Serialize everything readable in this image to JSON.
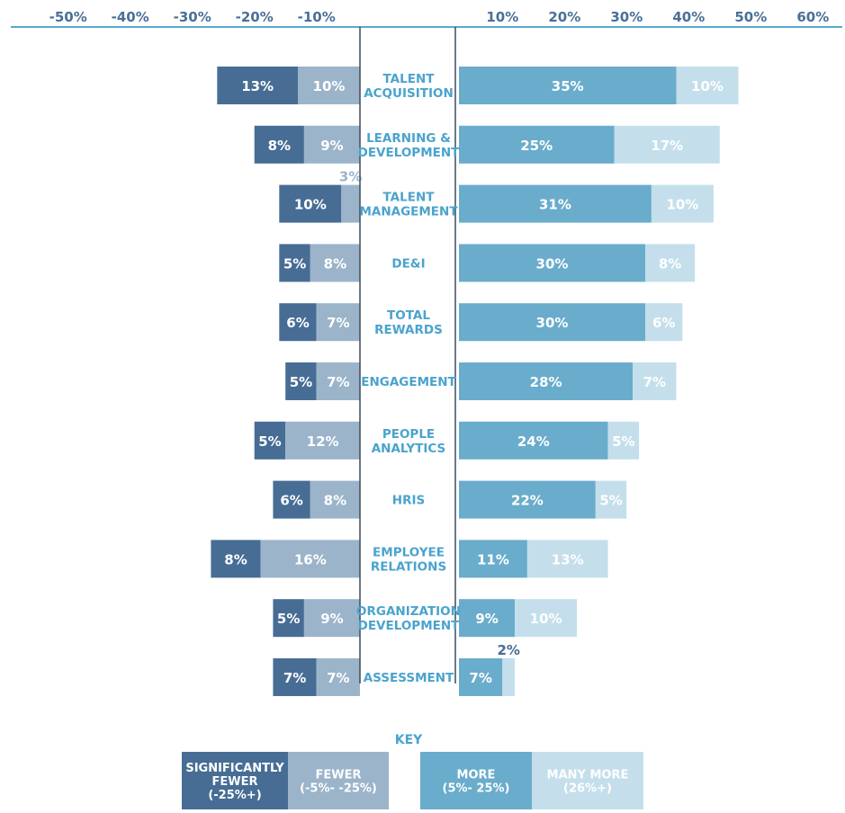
{
  "colors": {
    "significantly_fewer": "#476d95",
    "fewer": "#9bb4ca",
    "more": "#6aaccb",
    "many_more": "#c4dfeb",
    "axis": "#5aa9cf",
    "category_text": "#4aa3cd",
    "tick_text": "#4a6f96",
    "center_border": "#3c4b5c"
  },
  "chart_data": {
    "type": "bar",
    "orientation": "horizontal-diverging",
    "x_ticks": [
      "-50%",
      "-40%",
      "-30%",
      "-20%",
      "-10%",
      "10%",
      "20%",
      "30%",
      "40%",
      "50%",
      "60%"
    ],
    "xlim": [
      -50,
      60
    ],
    "categories": [
      [
        "TALENT",
        "ACQUISITION"
      ],
      [
        "LEARNING &",
        "DEVELOPMENT"
      ],
      [
        "TALENT",
        "MANAGEMENT"
      ],
      [
        "DE&I"
      ],
      [
        "TOTAL",
        "REWARDS"
      ],
      [
        "ENGAGEMENT"
      ],
      [
        "PEOPLE",
        "ANALYTICS"
      ],
      [
        "HRIS"
      ],
      [
        "EMPLOYEE",
        "RELATIONS"
      ],
      [
        "ORGANIZATION",
        "DEVELOPMENT"
      ],
      [
        "ASSESSMENT"
      ]
    ],
    "series": [
      {
        "name": "Significantly fewer",
        "direction": "left",
        "values": [
          13,
          8,
          10,
          5,
          6,
          5,
          5,
          6,
          8,
          5,
          7
        ],
        "labels": [
          "13%",
          "8%",
          "10%",
          "5%",
          "6%",
          "5%",
          "5%",
          "6%",
          "8%",
          "5%",
          "7%"
        ]
      },
      {
        "name": "Fewer",
        "direction": "left",
        "values": [
          10,
          9,
          3,
          8,
          7,
          7,
          12,
          8,
          16,
          9,
          7
        ],
        "labels": [
          "10%",
          "9%",
          "3%",
          "8%",
          "7%",
          "7%",
          "12%",
          "8%",
          "16%",
          "9%",
          "7%"
        ]
      },
      {
        "name": "More",
        "direction": "right",
        "values": [
          35,
          25,
          31,
          30,
          30,
          28,
          24,
          22,
          11,
          9,
          7
        ],
        "labels": [
          "35%",
          "25%",
          "31%",
          "30%",
          "30%",
          "28%",
          "24%",
          "22%",
          "11%",
          "9%",
          "7%"
        ]
      },
      {
        "name": "Many more",
        "direction": "right",
        "values": [
          10,
          17,
          10,
          8,
          6,
          7,
          5,
          5,
          13,
          10,
          2
        ],
        "labels": [
          "10%",
          "17%",
          "10%",
          "8%",
          "6%",
          "7%",
          "5%",
          "5%",
          "13%",
          "10%",
          "2%"
        ]
      }
    ]
  },
  "key": {
    "title": "KEY",
    "items": [
      {
        "lines": [
          "SIGNIFICANTLY",
          "FEWER",
          "(-25%+)"
        ]
      },
      {
        "lines": [
          "FEWER",
          "(-5%- -25%)"
        ]
      },
      {
        "lines": [
          "MORE",
          "(5%- 25%)"
        ]
      },
      {
        "lines": [
          "MANY MORE",
          "(26%+)"
        ]
      }
    ]
  }
}
